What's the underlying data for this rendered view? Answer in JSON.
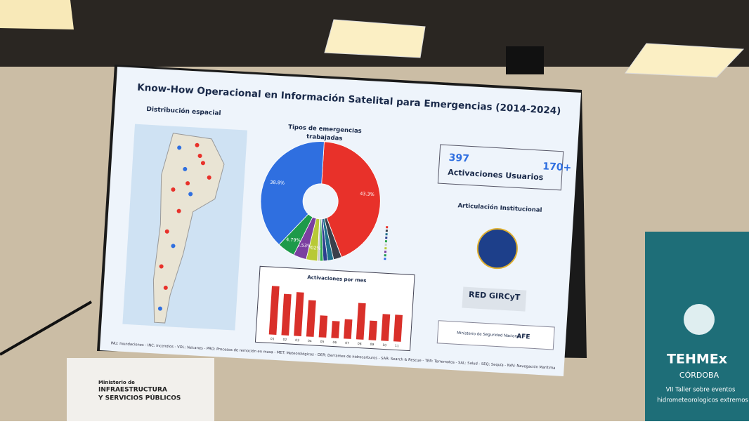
{
  "slide": {
    "title": "Know-How Operacional en Información Satelital para Emergencias (2014-2024)",
    "map_title": "Distribución espacial",
    "donut": {
      "title_lines": [
        "Tipos de emergencias",
        "trabajadas"
      ],
      "values": [
        43.3,
        2.2,
        1.6,
        1.2,
        0.9,
        0.66,
        3.02,
        3.53,
        4.79,
        38.8
      ],
      "value_labels": [
        "43.3%",
        null,
        null,
        null,
        null,
        null,
        "3.02%",
        "3.53%",
        "4.79%",
        "38.8%"
      ],
      "colors": [
        "#e8312a",
        "#3a3f4b",
        "#1f6f8b",
        "#2b3f8f",
        "#2fa84f",
        "#c9c9c9",
        "#b8c936",
        "#7b3fa0",
        "#1e9a4a",
        "#2f6fe0"
      ]
    },
    "bars": {
      "title": "Activaciones por mes",
      "categories": [
        "01",
        "02",
        "03",
        "04",
        "05",
        "06",
        "07",
        "08",
        "09",
        "10",
        "11"
      ],
      "values": [
        100,
        85,
        90,
        75,
        45,
        35,
        40,
        75,
        40,
        55,
        55
      ],
      "ylim": [
        0,
        110
      ],
      "color": "#d9302a"
    },
    "stats": {
      "activations": "397",
      "activations_label": "Activaciones",
      "users": "170+",
      "users_label": "Usuarios"
    },
    "institutional": "Articulación Institucional",
    "red_gircyt": "RED GIRCyT",
    "ministry": "Ministerio de Seguridad Nacional",
    "afe": "AFE",
    "footer": "INU: Inundaciones - INC: Incendios - VOL: Volcanes - PRO: Procesos de remoción en masa - MET: Meteorológicos - DER: Derrames de hidrocarburos - SAR: Search & Rescue - TER: Terremotos - SAL: Salud - SEQ: Sequía - NAV: Navegación Marítima"
  },
  "podium": [
    "Ministerio de",
    "INFRAESTRUCTURA",
    "Y SERVICIOS PÚBLICOS"
  ],
  "banner": [
    "TEHMEx",
    "CÓRDOBA",
    "VII Taller sobre eventos",
    "hidrometeorologicos extremos"
  ]
}
